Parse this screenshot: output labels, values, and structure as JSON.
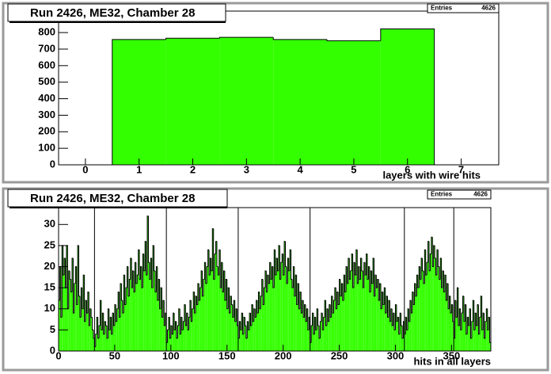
{
  "chart_data": [
    {
      "type": "histogram",
      "title": "Run 2426, ME32, Chamber 28",
      "x_label": "layers with wire hits",
      "stats": {
        "label": "Entries",
        "value": 4626
      },
      "bins": [
        0.5,
        1.5,
        2.5,
        3.5,
        4.5,
        5.5,
        6.5
      ],
      "values": [
        758,
        766,
        771,
        758,
        751,
        822
      ],
      "color": "#33ff00",
      "xlim": [
        -0.5,
        7.7
      ],
      "xticks": [
        0,
        1,
        2,
        3,
        4,
        5,
        6,
        7
      ],
      "ylim": [
        0,
        930
      ],
      "yticks": [
        0,
        100,
        200,
        300,
        400,
        500,
        600,
        700,
        800
      ]
    },
    {
      "type": "histogram",
      "title": "Run 2426, ME32, Chamber 28",
      "x_label": "hits in all layers",
      "stats": {
        "label": "Entries",
        "value": 4626
      },
      "bins": [
        0,
        1,
        2,
        3,
        4,
        5,
        6,
        7,
        8,
        9,
        10,
        11,
        12,
        13,
        14,
        15,
        16,
        17,
        18,
        19,
        20,
        21,
        22,
        23,
        24,
        25,
        26,
        27,
        28,
        29,
        30,
        31,
        32,
        33,
        34,
        35,
        36,
        37,
        38,
        39,
        40,
        41,
        42,
        43,
        44,
        45,
        46,
        47,
        48,
        49,
        50,
        51,
        52,
        53,
        54,
        55,
        56,
        57,
        58,
        59,
        60,
        61,
        62,
        63,
        64,
        65,
        66,
        67,
        68,
        69,
        70,
        71,
        72,
        73,
        74,
        75,
        76,
        77,
        78,
        79,
        80,
        81,
        82,
        83,
        84,
        85,
        86,
        87,
        88,
        89,
        90,
        91,
        92,
        93,
        94,
        95,
        96,
        97,
        98,
        99,
        100,
        101,
        102,
        103,
        104,
        105,
        106,
        107,
        108,
        109,
        110,
        111,
        112,
        113,
        114,
        115,
        116,
        117,
        118,
        119,
        120,
        121,
        122,
        123,
        124,
        125,
        126,
        127,
        128,
        129,
        130,
        131,
        132,
        133,
        134,
        135,
        136,
        137,
        138,
        139,
        140,
        141,
        142,
        143,
        144,
        145,
        146,
        147,
        148,
        149,
        150,
        151,
        152,
        153,
        154,
        155,
        156,
        157,
        158,
        159,
        160,
        161,
        162,
        163,
        164,
        165,
        166,
        167,
        168,
        169,
        170,
        171,
        172,
        173,
        174,
        175,
        176,
        177,
        178,
        179,
        180,
        181,
        182,
        183,
        184,
        185,
        186,
        187,
        188,
        189,
        190,
        191,
        192,
        193,
        194,
        195,
        196,
        197,
        198,
        199,
        200,
        201,
        202,
        203,
        204,
        205,
        206,
        207,
        208,
        209,
        210,
        211,
        212,
        213,
        214,
        215,
        216,
        217,
        218,
        219,
        220,
        221,
        222,
        223,
        224,
        225,
        226,
        227,
        228,
        229,
        230,
        231,
        232,
        233,
        234,
        235,
        236,
        237,
        238,
        239,
        240,
        241,
        242,
        243,
        244,
        245,
        246,
        247,
        248,
        249,
        250,
        251,
        252,
        253,
        254,
        255,
        256,
        257,
        258,
        259,
        260,
        261,
        262,
        263,
        264,
        265,
        266,
        267,
        268,
        269,
        270,
        271,
        272,
        273,
        274,
        275,
        276,
        277,
        278,
        279,
        280,
        281,
        282,
        283,
        284,
        285,
        286,
        287,
        288,
        289,
        290,
        291,
        292,
        293,
        294,
        295,
        296,
        297,
        298,
        299,
        300,
        301,
        302,
        303,
        304,
        305,
        306,
        307,
        308,
        309,
        310,
        311,
        312,
        313,
        314,
        315,
        316,
        317,
        318,
        319,
        320,
        321,
        322,
        323,
        324,
        325,
        326,
        327,
        328,
        329,
        330,
        331,
        332,
        333,
        334,
        335,
        336,
        337,
        338,
        339,
        340,
        341,
        342,
        343,
        344,
        345,
        346,
        347,
        348,
        349,
        350,
        351,
        352,
        353,
        354,
        355,
        356,
        357,
        358,
        359,
        360,
        361,
        362,
        363,
        364,
        365,
        366,
        367,
        368,
        369,
        370,
        371,
        372,
        373,
        374,
        375,
        376,
        377,
        378,
        379,
        380,
        381,
        382,
        383,
        384,
        385
      ],
      "values": [
        12,
        20,
        8,
        25,
        18,
        22,
        15,
        25,
        10,
        19,
        17,
        14,
        22,
        9,
        16,
        20,
        11,
        25,
        13,
        8,
        15,
        10,
        18,
        7,
        12,
        9,
        14,
        6,
        10,
        8,
        5,
        3,
        1,
        4,
        8,
        3,
        6,
        12,
        5,
        9,
        4,
        7,
        6,
        3,
        10,
        5,
        8,
        4,
        9,
        6,
        11,
        7,
        10,
        14,
        8,
        16,
        12,
        9,
        18,
        11,
        15,
        20,
        13,
        17,
        22,
        15,
        19,
        14,
        21,
        16,
        18,
        24,
        17,
        20,
        15,
        23,
        19,
        26,
        18,
        32,
        21,
        17,
        22,
        15,
        25,
        19,
        14,
        20,
        12,
        17,
        10,
        15,
        8,
        12,
        6,
        9,
        2,
        5,
        8,
        3,
        6,
        4,
        9,
        5,
        7,
        3,
        6,
        10,
        4,
        8,
        5,
        7,
        11,
        6,
        9,
        5,
        8,
        12,
        7,
        10,
        14,
        9,
        13,
        11,
        16,
        12,
        15,
        19,
        13,
        17,
        21,
        16,
        20,
        24,
        18,
        22,
        19,
        29,
        17,
        23,
        26,
        20,
        18,
        24,
        15,
        21,
        14,
        19,
        12,
        17,
        10,
        15,
        9,
        13,
        11,
        8,
        12,
        7,
        10,
        6,
        3,
        7,
        5,
        9,
        4,
        8,
        6,
        3,
        7,
        5,
        9,
        6,
        11,
        7,
        10,
        8,
        12,
        9,
        14,
        10,
        13,
        17,
        11,
        15,
        19,
        14,
        18,
        16,
        21,
        17,
        20,
        15,
        24,
        18,
        22,
        19,
        25,
        17,
        21,
        23,
        18,
        26,
        20,
        16,
        22,
        19,
        24,
        17,
        15,
        20,
        13,
        18,
        11,
        16,
        10,
        14,
        9,
        12,
        8,
        11,
        7,
        10,
        5,
        8,
        2,
        6,
        9,
        4,
        8,
        5,
        10,
        6,
        3,
        7,
        9,
        5,
        8,
        12,
        6,
        10,
        7,
        11,
        8,
        13,
        9,
        12,
        15,
        10,
        14,
        11,
        17,
        13,
        16,
        12,
        18,
        14,
        20,
        16,
        22,
        17,
        19,
        23,
        15,
        21,
        18,
        24,
        16,
        20,
        17,
        22,
        19,
        15,
        21,
        18,
        23,
        17,
        20,
        14,
        19,
        16,
        22,
        13,
        18,
        15,
        17,
        12,
        16,
        10,
        14,
        11,
        15,
        9,
        13,
        8,
        12,
        7,
        10,
        6,
        9,
        5,
        11,
        7,
        8,
        4,
        9,
        6,
        3,
        7,
        4,
        8,
        5,
        10,
        7,
        12,
        9,
        14,
        11,
        16,
        13,
        18,
        15,
        20,
        17,
        22,
        19,
        16,
        24,
        18,
        21,
        26,
        19,
        23,
        27,
        20,
        25,
        22,
        18,
        24,
        20,
        17,
        22,
        15,
        19,
        14,
        18,
        12,
        16,
        10,
        13,
        9,
        11,
        7,
        3,
        12,
        8,
        15,
        6,
        10,
        5,
        9,
        13,
        7,
        11,
        4,
        8,
        6,
        10,
        3,
        7,
        12,
        5,
        9,
        6,
        11,
        4,
        8,
        13,
        5,
        9,
        3,
        7,
        10,
        5,
        8,
        2
      ],
      "vertical_lines": [
        32,
        96,
        160,
        224,
        308,
        352
      ],
      "color": "#33ff00",
      "xlim": [
        0,
        385
      ],
      "xticks": [
        0,
        50,
        100,
        150,
        200,
        250,
        300,
        350
      ],
      "ylim": [
        0,
        34
      ],
      "yticks": [
        0,
        5,
        10,
        15,
        20,
        25,
        30
      ]
    }
  ]
}
